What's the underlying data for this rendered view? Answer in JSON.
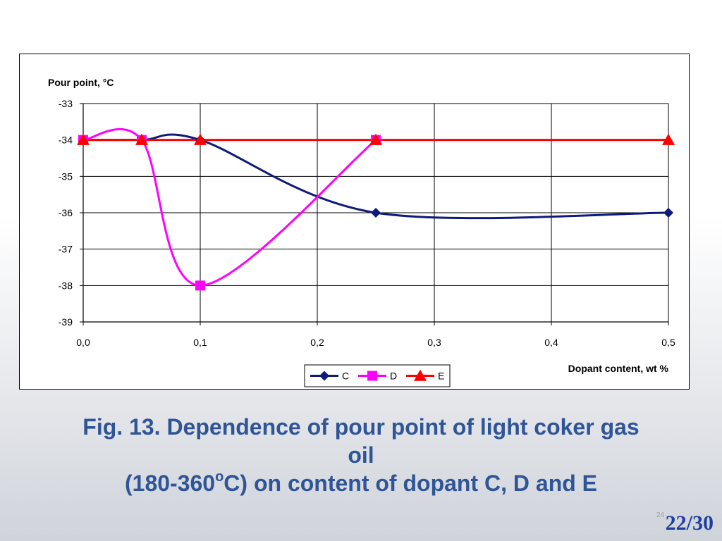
{
  "chart_data": {
    "type": "line",
    "ylabel": "Pour point, °C",
    "xlabel": "Dopant content, wt %",
    "ylim": [
      -39,
      -33
    ],
    "xlim": [
      0,
      0.5
    ],
    "y_ticks": [
      "-33",
      "-34",
      "-35",
      "-36",
      "-37",
      "-38",
      "-39"
    ],
    "x_ticks": [
      "0,0",
      "0,1",
      "0,2",
      "0,3",
      "0,4",
      "0,5"
    ],
    "grid": true,
    "legend_position": "bottom-center",
    "series": [
      {
        "name": "C",
        "color": "#0d1b7a",
        "marker": "diamond",
        "x": [
          0,
          0.05,
          0.1,
          0.25,
          0.5
        ],
        "y": [
          -34,
          -34,
          -34,
          -36,
          -36
        ]
      },
      {
        "name": "D",
        "color": "#ff00ff",
        "marker": "square",
        "x": [
          0,
          0.05,
          0.1,
          0.25
        ],
        "y": [
          -34,
          -34,
          -38,
          -34
        ]
      },
      {
        "name": "E",
        "color": "#ff0000",
        "marker": "triangle",
        "x": [
          0,
          0.05,
          0.1,
          0.25,
          0.5
        ],
        "y": [
          -34,
          -34,
          -34,
          -34,
          -34
        ]
      }
    ]
  },
  "caption": {
    "line1": "Fig. 13. Dependence of pour point of light coker gas",
    "line2": "oil",
    "line3_pre": "(180-360",
    "line3_sup": "o",
    "line3_post": "C) on content of dopant C, D and E"
  },
  "page": {
    "number": "22/30",
    "tiny": "24"
  }
}
